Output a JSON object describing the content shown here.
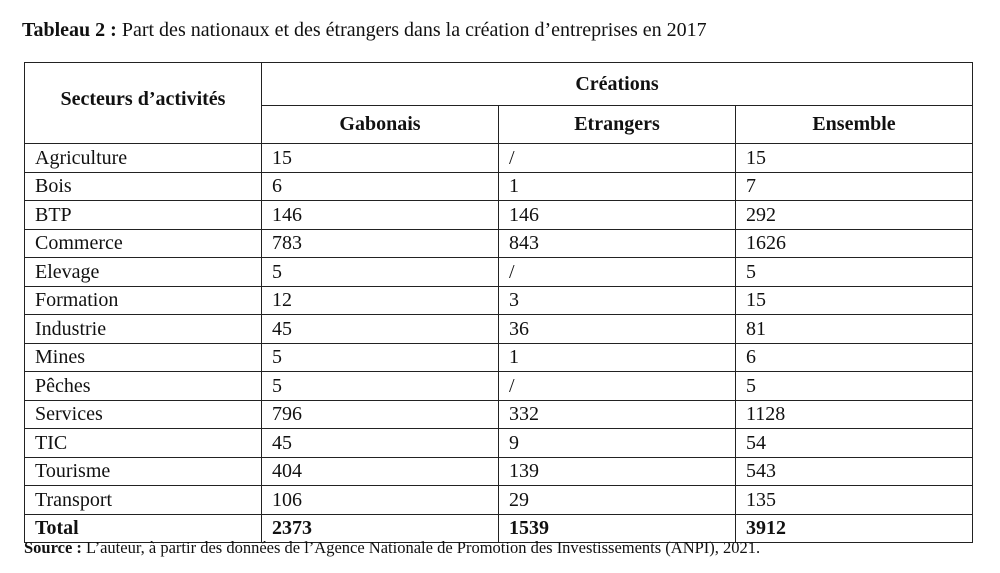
{
  "caption": {
    "label": "Tableau 2 :",
    "text": "Part des nationaux et des étrangers dans la création d’entreprises en 2017"
  },
  "table": {
    "row_header": "Secteurs d’activités",
    "group_header": "Créations",
    "columns": [
      "Gabonais",
      "Etrangers",
      "Ensemble"
    ],
    "rows": [
      {
        "secteur": "Agriculture",
        "gabonais": "15",
        "etrangers": "/",
        "ensemble": "15"
      },
      {
        "secteur": "Bois",
        "gabonais": "6",
        "etrangers": "1",
        "ensemble": "7"
      },
      {
        "secteur": "BTP",
        "gabonais": "146",
        "etrangers": "146",
        "ensemble": "292"
      },
      {
        "secteur": "Commerce",
        "gabonais": "783",
        "etrangers": "843",
        "ensemble": "1626"
      },
      {
        "secteur": "Elevage",
        "gabonais": "5",
        "etrangers": "/",
        "ensemble": "5"
      },
      {
        "secteur": "Formation",
        "gabonais": "12",
        "etrangers": "3",
        "ensemble": "15"
      },
      {
        "secteur": "Industrie",
        "gabonais": "45",
        "etrangers": "36",
        "ensemble": "81"
      },
      {
        "secteur": "Mines",
        "gabonais": "5",
        "etrangers": "1",
        "ensemble": "6"
      },
      {
        "secteur": "Pêches",
        "gabonais": "5",
        "etrangers": "/",
        "ensemble": "5"
      },
      {
        "secteur": "Services",
        "gabonais": "796",
        "etrangers": "332",
        "ensemble": "1128"
      },
      {
        "secteur": "TIC",
        "gabonais": "45",
        "etrangers": "9",
        "ensemble": "54"
      },
      {
        "secteur": "Tourisme",
        "gabonais": "404",
        "etrangers": "139",
        "ensemble": "543"
      },
      {
        "secteur": "Transport",
        "gabonais": "106",
        "etrangers": "29",
        "ensemble": "135"
      }
    ],
    "total": {
      "secteur": "Total",
      "gabonais": "2373",
      "etrangers": "1539",
      "ensemble": "3912"
    }
  },
  "source": {
    "label": "Source :",
    "text": "L’auteur, à partir des données de l’Agence Nationale de Promotion des Investissements (ANPI), 2021."
  }
}
